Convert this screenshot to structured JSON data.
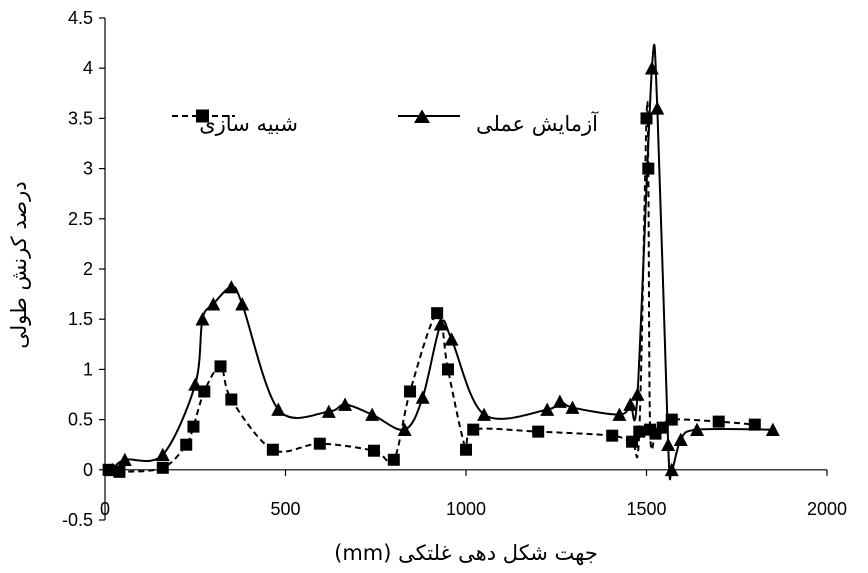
{
  "chart_data": {
    "type": "line",
    "xlabel": "جهت شکل دهی غلتکی (mm)",
    "ylabel": "درصد کرنش طولی",
    "xlim": [
      0,
      2000
    ],
    "ylim": [
      -0.5,
      4.5
    ],
    "xticks": [
      "0",
      "500",
      "1000",
      "1500",
      "2000"
    ],
    "yticks": [
      "-0.5",
      "0",
      "0.5",
      "1",
      "1.5",
      "2",
      "2.5",
      "3",
      "3.5",
      "4",
      "4.5"
    ],
    "grid": false,
    "legend_position": "top",
    "series": [
      {
        "name": "شبیه سازی",
        "marker": "square",
        "line": "dashed",
        "color": "#000000",
        "x": [
          10,
          40,
          160,
          225,
          245,
          275,
          320,
          350,
          465,
          595,
          745,
          800,
          845,
          920,
          950,
          1000,
          1020,
          1200,
          1405,
          1460,
          1480,
          1500,
          1505,
          1510,
          1525,
          1545,
          1570,
          1700,
          1800
        ],
        "y": [
          0,
          -0.02,
          0.02,
          0.25,
          0.43,
          0.78,
          1.03,
          0.7,
          0.2,
          0.26,
          0.19,
          0.1,
          0.78,
          1.56,
          1.0,
          0.2,
          0.4,
          0.38,
          0.34,
          0.28,
          0.38,
          3.5,
          3.0,
          0.4,
          0.36,
          0.42,
          0.5,
          0.48,
          0.45
        ]
      },
      {
        "name": "آزمایش عملی",
        "marker": "triangle",
        "line": "solid",
        "color": "#000000",
        "x": [
          20,
          55,
          160,
          250,
          270,
          300,
          350,
          380,
          480,
          620,
          665,
          740,
          830,
          880,
          930,
          960,
          1050,
          1225,
          1260,
          1295,
          1425,
          1455,
          1475,
          1515,
          1530,
          1560,
          1570,
          1595,
          1640,
          1850
        ],
        "y": [
          0,
          0.1,
          0.15,
          0.85,
          1.5,
          1.65,
          1.82,
          1.65,
          0.6,
          0.58,
          0.65,
          0.55,
          0.4,
          0.72,
          1.45,
          1.3,
          0.55,
          0.6,
          0.68,
          0.62,
          0.55,
          0.65,
          0.75,
          4.0,
          3.6,
          0.25,
          0.0,
          0.3,
          0.4,
          0.4
        ]
      }
    ]
  }
}
